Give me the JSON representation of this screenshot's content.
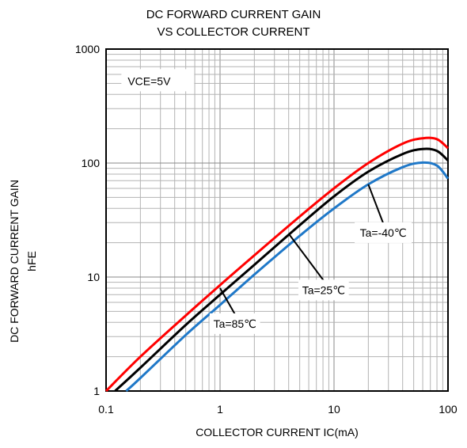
{
  "chart_data": {
    "type": "line",
    "title_lines": [
      "DC FORWARD CURRENT GAIN",
      "VS COLLECTOR CURRENT"
    ],
    "xlabel": "COLLECTOR CURRENT  IC(mA)",
    "ylabel_lines": [
      "DC FORWARD CURRENT GAIN",
      "hFE"
    ],
    "x_scale": "log",
    "y_scale": "log",
    "xlim": [
      0.1,
      100
    ],
    "ylim": [
      1,
      1000
    ],
    "x_ticks": [
      0.1,
      1,
      10,
      100
    ],
    "x_tick_labels": [
      "0.1",
      "1",
      "10",
      "100"
    ],
    "y_ticks": [
      1,
      10,
      100,
      1000
    ],
    "y_tick_labels": [
      "1",
      "10",
      "100",
      "1000"
    ],
    "grid": true,
    "condition_label": "VCE=5V",
    "series": [
      {
        "name": "Ta=85°C",
        "color": "#ff0000",
        "x": [
          0.1,
          0.2,
          0.5,
          1,
          2,
          5,
          10,
          20,
          40,
          60,
          80,
          100
        ],
        "y": [
          1,
          2,
          4.6,
          8.5,
          15.5,
          34,
          60,
          100,
          148,
          165,
          162,
          135
        ]
      },
      {
        "name": "Ta=25°C",
        "color": "#000000",
        "x": [
          0.12,
          0.2,
          0.5,
          1,
          2,
          5,
          10,
          20,
          40,
          60,
          80,
          100
        ],
        "y": [
          1,
          1.6,
          3.8,
          7,
          12.8,
          28.5,
          51,
          84,
          120,
          133,
          128,
          105
        ]
      },
      {
        "name": "Ta=-40°C",
        "color": "#1f78c8",
        "x": [
          0.15,
          0.2,
          0.5,
          1,
          2,
          5,
          10,
          20,
          40,
          60,
          80,
          100
        ],
        "y": [
          1,
          1.3,
          3.1,
          5.7,
          10.5,
          23,
          40,
          65,
          92,
          101,
          95,
          73
        ]
      }
    ],
    "annotations": [
      {
        "text": "Ta=-40℃",
        "series": "Ta=-40°C",
        "at_x": 20,
        "at_y": 65,
        "label_x": 27,
        "label_y": 24.5
      },
      {
        "text": "Ta=25℃",
        "series": "Ta=25°C",
        "at_x": 4,
        "at_y": 24,
        "label_x": 8.1,
        "label_y": 7.7
      },
      {
        "text": "Ta=85℃",
        "series": "Ta=85°C",
        "at_x": 1,
        "at_y": 8,
        "label_x": 1.35,
        "label_y": 3.9
      }
    ]
  }
}
